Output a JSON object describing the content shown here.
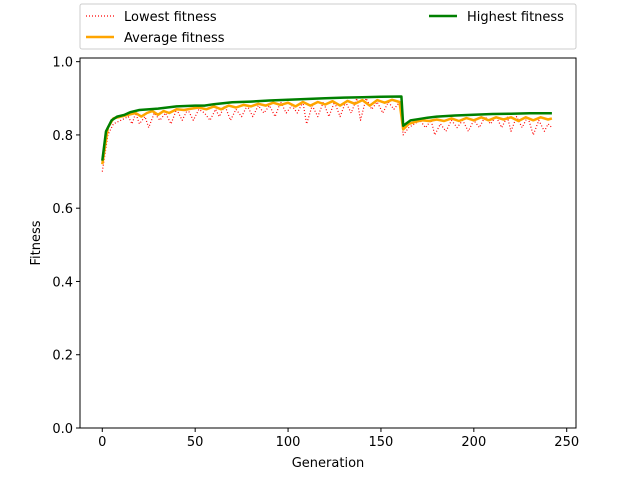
{
  "chart_data": {
    "type": "line",
    "title": "",
    "xlabel": "Generation",
    "ylabel": "Fitness",
    "xlim": [
      -12,
      255
    ],
    "ylim": [
      0.0,
      1.01
    ],
    "grid": false,
    "legend": {
      "placement": "top, above plot",
      "columns": 2
    },
    "x_ticks": [
      0,
      50,
      100,
      150,
      200,
      250
    ],
    "y_ticks": [
      0.0,
      0.2,
      0.4,
      0.6,
      0.8,
      1.0
    ],
    "x_tick_labels": [
      "0",
      "50",
      "100",
      "150",
      "200",
      "250"
    ],
    "y_tick_labels": [
      "0.0",
      "0.2",
      "0.4",
      "0.6",
      "0.8",
      "1.0"
    ],
    "generations": {
      "start": 0,
      "end": 242
    },
    "series": [
      {
        "name": "Lowest fitness",
        "color": "#ff0000",
        "style": "dotted",
        "points": [
          [
            0,
            0.7
          ],
          [
            3,
            0.8
          ],
          [
            6,
            0.83
          ],
          [
            10,
            0.84
          ],
          [
            14,
            0.85
          ],
          [
            16,
            0.83
          ],
          [
            18,
            0.86
          ],
          [
            20,
            0.83
          ],
          [
            23,
            0.85
          ],
          [
            25,
            0.82
          ],
          [
            28,
            0.86
          ],
          [
            31,
            0.84
          ],
          [
            34,
            0.86
          ],
          [
            37,
            0.83
          ],
          [
            40,
            0.87
          ],
          [
            43,
            0.84
          ],
          [
            46,
            0.87
          ],
          [
            49,
            0.84
          ],
          [
            52,
            0.87
          ],
          [
            55,
            0.86
          ],
          [
            58,
            0.84
          ],
          [
            61,
            0.87
          ],
          [
            63,
            0.85
          ],
          [
            66,
            0.88
          ],
          [
            69,
            0.84
          ],
          [
            72,
            0.87
          ],
          [
            75,
            0.85
          ],
          [
            78,
            0.88
          ],
          [
            81,
            0.85
          ],
          [
            84,
            0.88
          ],
          [
            87,
            0.86
          ],
          [
            90,
            0.88
          ],
          [
            93,
            0.85
          ],
          [
            96,
            0.89
          ],
          [
            99,
            0.86
          ],
          [
            102,
            0.88
          ],
          [
            105,
            0.86
          ],
          [
            108,
            0.89
          ],
          [
            110,
            0.83
          ],
          [
            113,
            0.88
          ],
          [
            116,
            0.85
          ],
          [
            119,
            0.89
          ],
          [
            122,
            0.85
          ],
          [
            125,
            0.89
          ],
          [
            128,
            0.85
          ],
          [
            131,
            0.89
          ],
          [
            134,
            0.86
          ],
          [
            137,
            0.9
          ],
          [
            139,
            0.84
          ],
          [
            142,
            0.9
          ],
          [
            145,
            0.87
          ],
          [
            148,
            0.89
          ],
          [
            151,
            0.86
          ],
          [
            154,
            0.89
          ],
          [
            157,
            0.87
          ],
          [
            160,
            0.89
          ],
          [
            162,
            0.8
          ],
          [
            165,
            0.82
          ],
          [
            168,
            0.83
          ],
          [
            171,
            0.84
          ],
          [
            174,
            0.82
          ],
          [
            177,
            0.84
          ],
          [
            179,
            0.8
          ],
          [
            182,
            0.83
          ],
          [
            185,
            0.81
          ],
          [
            188,
            0.84
          ],
          [
            191,
            0.82
          ],
          [
            194,
            0.84
          ],
          [
            197,
            0.81
          ],
          [
            200,
            0.84
          ],
          [
            203,
            0.82
          ],
          [
            206,
            0.85
          ],
          [
            209,
            0.83
          ],
          [
            212,
            0.85
          ],
          [
            215,
            0.82
          ],
          [
            218,
            0.85
          ],
          [
            220,
            0.81
          ],
          [
            223,
            0.85
          ],
          [
            226,
            0.82
          ],
          [
            229,
            0.85
          ],
          [
            232,
            0.8
          ],
          [
            235,
            0.84
          ],
          [
            238,
            0.81
          ],
          [
            240,
            0.83
          ],
          [
            242,
            0.82
          ]
        ]
      },
      {
        "name": "Average fitness",
        "color": "#ffa500",
        "style": "solid",
        "points": [
          [
            0,
            0.72
          ],
          [
            3,
            0.82
          ],
          [
            6,
            0.845
          ],
          [
            10,
            0.85
          ],
          [
            14,
            0.855
          ],
          [
            18,
            0.86
          ],
          [
            21,
            0.85
          ],
          [
            24,
            0.86
          ],
          [
            27,
            0.865
          ],
          [
            30,
            0.855
          ],
          [
            33,
            0.865
          ],
          [
            36,
            0.86
          ],
          [
            40,
            0.87
          ],
          [
            44,
            0.868
          ],
          [
            48,
            0.872
          ],
          [
            52,
            0.875
          ],
          [
            56,
            0.87
          ],
          [
            60,
            0.878
          ],
          [
            64,
            0.87
          ],
          [
            68,
            0.88
          ],
          [
            72,
            0.875
          ],
          [
            76,
            0.882
          ],
          [
            80,
            0.878
          ],
          [
            84,
            0.885
          ],
          [
            88,
            0.88
          ],
          [
            92,
            0.888
          ],
          [
            96,
            0.882
          ],
          [
            100,
            0.888
          ],
          [
            104,
            0.878
          ],
          [
            108,
            0.89
          ],
          [
            112,
            0.88
          ],
          [
            116,
            0.89
          ],
          [
            120,
            0.883
          ],
          [
            124,
            0.892
          ],
          [
            128,
            0.88
          ],
          [
            132,
            0.893
          ],
          [
            136,
            0.885
          ],
          [
            140,
            0.895
          ],
          [
            144,
            0.88
          ],
          [
            148,
            0.895
          ],
          [
            152,
            0.888
          ],
          [
            156,
            0.896
          ],
          [
            160,
            0.89
          ],
          [
            162,
            0.815
          ],
          [
            165,
            0.83
          ],
          [
            168,
            0.835
          ],
          [
            172,
            0.84
          ],
          [
            176,
            0.838
          ],
          [
            180,
            0.842
          ],
          [
            184,
            0.838
          ],
          [
            188,
            0.845
          ],
          [
            192,
            0.838
          ],
          [
            196,
            0.846
          ],
          [
            200,
            0.84
          ],
          [
            204,
            0.848
          ],
          [
            208,
            0.84
          ],
          [
            212,
            0.848
          ],
          [
            216,
            0.842
          ],
          [
            220,
            0.848
          ],
          [
            224,
            0.838
          ],
          [
            228,
            0.848
          ],
          [
            232,
            0.84
          ],
          [
            236,
            0.848
          ],
          [
            240,
            0.842
          ],
          [
            242,
            0.845
          ]
        ]
      },
      {
        "name": "Highest fitness",
        "color": "#008000",
        "style": "solid",
        "points": [
          [
            0,
            0.73
          ],
          [
            2,
            0.81
          ],
          [
            5,
            0.84
          ],
          [
            8,
            0.85
          ],
          [
            12,
            0.855
          ],
          [
            15,
            0.862
          ],
          [
            20,
            0.868
          ],
          [
            30,
            0.872
          ],
          [
            40,
            0.878
          ],
          [
            50,
            0.88
          ],
          [
            55,
            0.88
          ],
          [
            60,
            0.884
          ],
          [
            70,
            0.889
          ],
          [
            80,
            0.891
          ],
          [
            90,
            0.894
          ],
          [
            100,
            0.896
          ],
          [
            110,
            0.898
          ],
          [
            120,
            0.9
          ],
          [
            130,
            0.902
          ],
          [
            140,
            0.903
          ],
          [
            150,
            0.904
          ],
          [
            161,
            0.905
          ],
          [
            162,
            0.825
          ],
          [
            166,
            0.84
          ],
          [
            170,
            0.843
          ],
          [
            175,
            0.847
          ],
          [
            180,
            0.85
          ],
          [
            190,
            0.853
          ],
          [
            200,
            0.855
          ],
          [
            210,
            0.857
          ],
          [
            220,
            0.858
          ],
          [
            230,
            0.859
          ],
          [
            242,
            0.859
          ]
        ]
      }
    ]
  }
}
